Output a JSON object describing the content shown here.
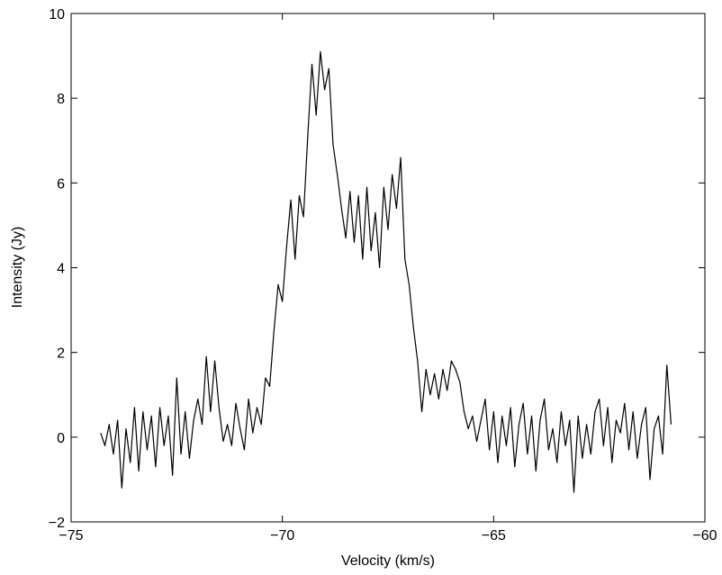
{
  "chart_data": {
    "type": "line",
    "x_label": "Velocity (km/s)",
    "y_label": "Intensity (Jy)",
    "xlim": [
      -75,
      -60
    ],
    "ylim": [
      -2,
      10
    ],
    "xticks": [
      {
        "value": -75,
        "label": "−75"
      },
      {
        "value": -70,
        "label": "−70"
      },
      {
        "value": -65,
        "label": "−65"
      },
      {
        "value": -60,
        "label": "−60"
      }
    ],
    "yticks": [
      {
        "value": -2,
        "label": "−2"
      },
      0,
      2,
      4,
      6,
      8,
      10
    ],
    "grid": false,
    "x": [
      -74.3,
      -74.2,
      -74.1,
      -74.0,
      -73.9,
      -73.8,
      -73.7,
      -73.6,
      -73.5,
      -73.4,
      -73.3,
      -73.2,
      -73.1,
      -73.0,
      -72.9,
      -72.8,
      -72.7,
      -72.6,
      -72.5,
      -72.4,
      -72.3,
      -72.2,
      -72.1,
      -72.0,
      -71.9,
      -71.8,
      -71.7,
      -71.6,
      -71.5,
      -71.4,
      -71.3,
      -71.2,
      -71.1,
      -71.0,
      -70.9,
      -70.8,
      -70.7,
      -70.6,
      -70.5,
      -70.4,
      -70.3,
      -70.2,
      -70.1,
      -70.0,
      -69.9,
      -69.8,
      -69.7,
      -69.6,
      -69.5,
      -69.4,
      -69.3,
      -69.2,
      -69.1,
      -69.0,
      -68.9,
      -68.8,
      -68.7,
      -68.6,
      -68.5,
      -68.4,
      -68.3,
      -68.2,
      -68.1,
      -68.0,
      -67.9,
      -67.8,
      -67.7,
      -67.6,
      -67.5,
      -67.4,
      -67.3,
      -67.2,
      -67.1,
      -67.0,
      -66.9,
      -66.8,
      -66.7,
      -66.6,
      -66.5,
      -66.4,
      -66.3,
      -66.2,
      -66.1,
      -66.0,
      -65.9,
      -65.8,
      -65.7,
      -65.6,
      -65.5,
      -65.4,
      -65.3,
      -65.2,
      -65.1,
      -65.0,
      -64.9,
      -64.8,
      -64.7,
      -64.6,
      -64.5,
      -64.4,
      -64.3,
      -64.2,
      -64.1,
      -64.0,
      -63.9,
      -63.8,
      -63.7,
      -63.6,
      -63.5,
      -63.4,
      -63.3,
      -63.2,
      -63.1,
      -63.0,
      -62.9,
      -62.8,
      -62.7,
      -62.6,
      -62.5,
      -62.4,
      -62.3,
      -62.2,
      -62.1,
      -62.0,
      -61.9,
      -61.8,
      -61.7,
      -61.6,
      -61.5,
      -61.4,
      -61.3,
      -61.2,
      -61.1,
      -61.0,
      -60.9,
      -60.8
    ],
    "series": [
      {
        "color": "#000000",
        "values": [
          0.1,
          -0.2,
          0.3,
          -0.4,
          0.4,
          -1.2,
          0.2,
          -0.6,
          0.7,
          -0.8,
          0.6,
          -0.3,
          0.5,
          -0.7,
          0.7,
          -0.2,
          0.5,
          -0.9,
          1.4,
          -0.4,
          0.6,
          -0.5,
          0.4,
          0.9,
          0.3,
          1.9,
          0.6,
          1.8,
          0.7,
          -0.1,
          0.3,
          -0.2,
          0.8,
          0.2,
          -0.3,
          0.9,
          0.1,
          0.7,
          0.3,
          1.4,
          1.2,
          2.5,
          3.6,
          3.2,
          4.5,
          5.6,
          4.2,
          5.7,
          5.2,
          7.1,
          8.8,
          7.6,
          9.1,
          8.2,
          8.7,
          6.9,
          6.2,
          5.4,
          4.7,
          5.8,
          4.6,
          5.7,
          4.2,
          5.9,
          4.4,
          5.3,
          4.0,
          5.9,
          4.9,
          6.2,
          5.4,
          6.6,
          4.2,
          3.6,
          2.6,
          1.8,
          0.6,
          1.6,
          1.0,
          1.5,
          0.9,
          1.6,
          1.1,
          1.8,
          1.6,
          1.3,
          0.6,
          0.2,
          0.5,
          -0.1,
          0.4,
          0.9,
          -0.3,
          0.6,
          -0.6,
          0.5,
          -0.2,
          0.7,
          -0.7,
          0.3,
          0.8,
          -0.4,
          0.5,
          -0.8,
          0.4,
          0.9,
          -0.3,
          0.2,
          -0.6,
          0.6,
          -0.2,
          0.4,
          -1.3,
          0.5,
          -0.5,
          0.3,
          -0.4,
          0.6,
          0.9,
          -0.2,
          0.7,
          -0.6,
          0.4,
          0.1,
          0.8,
          -0.3,
          0.6,
          -0.5,
          0.3,
          0.7,
          -1.0,
          0.2,
          0.5,
          -0.4,
          1.7,
          0.3
        ]
      }
    ]
  }
}
